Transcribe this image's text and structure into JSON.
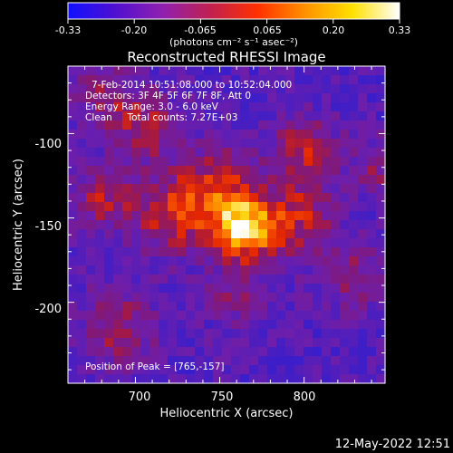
{
  "colorbar": {
    "ticks": [
      "-0.33",
      "-0.20",
      "-0.065",
      "0.065",
      "0.20",
      "0.33"
    ],
    "unit_label": "(photons cm⁻² s⁻¹ asec⁻²)",
    "colors": [
      "#1010ff",
      "#5010d0",
      "#9020b0",
      "#c02050",
      "#ff3000",
      "#ff9000",
      "#ffe000",
      "#ffffff"
    ]
  },
  "title": "Reconstructed RHESSI Image",
  "info": {
    "line1": "7-Feb-2014 10:51:08.000 to 10:52:04.000",
    "line2": "Detectors: 3F 4F 5F 6F 7F 8F, Att 0",
    "line3": "Energy Range: 3.0 - 6.0 keV",
    "line4": "Clean     Total counts: 7.27E+03"
  },
  "peak_label": "Position of Peak = [765,-157]",
  "xlabel": "Heliocentric X (arcsec)",
  "ylabel": "Heliocentric Y (arcsec)",
  "xticks": [
    "700",
    "750",
    "800"
  ],
  "yticks": [
    "-100",
    "-150",
    "-200"
  ],
  "date_stamp": "12-May-2022 12:51",
  "chart_data": {
    "type": "heatmap",
    "title": "Reconstructed RHESSI Image",
    "xlabel": "Heliocentric X (arcsec)",
    "ylabel": "Heliocentric Y (arcsec)",
    "xlim": [
      660,
      848
    ],
    "ylim": [
      -248,
      -60
    ],
    "xticks": [
      700,
      750,
      800
    ],
    "yticks": [
      -100,
      -150,
      -200
    ],
    "color_range": [
      -0.33,
      0.33
    ],
    "peak": [
      765,
      -157
    ],
    "total_counts": "7.27E+03",
    "energy_range_kev": [
      3.0,
      6.0
    ]
  }
}
